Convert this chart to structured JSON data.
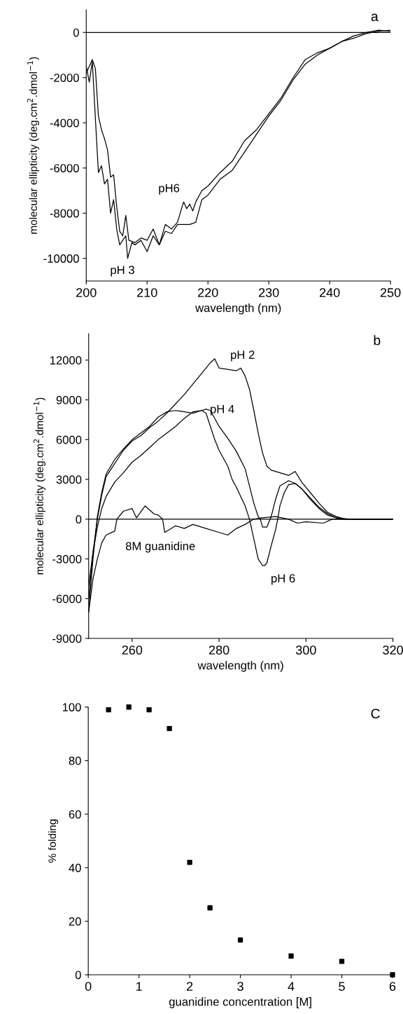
{
  "chart_data": [
    {
      "type": "line",
      "xlabel": "wavelength (nm)",
      "ylabel": "molecular ellipticity (deg.cm$^{2}$.dmol$^{−1}$)",
      "xlim": [
        200,
        250
      ],
      "ylim": [
        -11000,
        1000
      ],
      "xticks": [
        200,
        210,
        220,
        230,
        240,
        250
      ],
      "yticks": [
        -10000,
        -8000,
        -6000,
        -4000,
        -2000,
        0
      ],
      "grid": false,
      "legend": false,
      "marker": "none",
      "line_style": "solid",
      "ref_lines": [
        {
          "axis": "y",
          "value": 0,
          "color": "#000000"
        }
      ],
      "annotations": [
        "a"
      ],
      "series": [
        {
          "name": "pH 3",
          "color": "#000000",
          "x": [
            200,
            200.5,
            201,
            201.5,
            202,
            202.5,
            203,
            203.5,
            204,
            204.5,
            205,
            205.5,
            206,
            206.5,
            206.8,
            207.5,
            208,
            209,
            210,
            211,
            212,
            213,
            214,
            215,
            216,
            217,
            218,
            219,
            220,
            222,
            224,
            226,
            228,
            230,
            232,
            234,
            236,
            238,
            240,
            242,
            244,
            246,
            248,
            250
          ],
          "values": [
            -1500,
            -2200,
            -1300,
            -3800,
            -6200,
            -5900,
            -6700,
            -6500,
            -8000,
            -7400,
            -8700,
            -9400,
            -9200,
            -9000,
            -10000,
            -9300,
            -9400,
            -9200,
            -9700,
            -9000,
            -9400,
            -8800,
            -8900,
            -8500,
            -8500,
            -8500,
            -8400,
            -7400,
            -7200,
            -6500,
            -6100,
            -5300,
            -4500,
            -3700,
            -3000,
            -2100,
            -1400,
            -1000,
            -700,
            -400,
            -250,
            -50,
            50,
            100
          ]
        },
        {
          "name": "pH6",
          "color": "#000000",
          "x": [
            200,
            201,
            201.5,
            202,
            202.5,
            203,
            203.5,
            204,
            204.5,
            205,
            205.5,
            206,
            206.5,
            207,
            208,
            209,
            210,
            211,
            212,
            213,
            214,
            215,
            216,
            216.5,
            217,
            217.5,
            218,
            219,
            220,
            222,
            224,
            226,
            228,
            230,
            232,
            234,
            236,
            238,
            240,
            242,
            244,
            246,
            248,
            250
          ],
          "values": [
            -1800,
            -1200,
            -1600,
            -3700,
            -4300,
            -4700,
            -5200,
            -6400,
            -6300,
            -7700,
            -8800,
            -9000,
            -8100,
            -9200,
            -9300,
            -9100,
            -9200,
            -8700,
            -9400,
            -8500,
            -8700,
            -8400,
            -7500,
            -7800,
            -7600,
            -7900,
            -7500,
            -7000,
            -6800,
            -6200,
            -5700,
            -4800,
            -4300,
            -3600,
            -2900,
            -2000,
            -1200,
            -900,
            -700,
            -400,
            -150,
            0,
            100,
            50
          ]
        }
      ]
    },
    {
      "type": "line",
      "xlabel": "wavelength (nm)",
      "ylabel": "molecular ellipticity (deg.cm$^{2}$.dmol$^{−1}$)",
      "xlim": [
        250,
        320
      ],
      "ylim": [
        -9000,
        14000
      ],
      "xticks": [
        260,
        280,
        300,
        320
      ],
      "yticks": [
        -9000,
        -6000,
        -3000,
        0,
        3000,
        6000,
        9000,
        12000
      ],
      "grid": false,
      "legend": false,
      "marker": "none",
      "line_style": "solid",
      "ref_lines": [
        {
          "axis": "y",
          "value": 0,
          "color": "#000000"
        }
      ],
      "annotations": [
        "b"
      ],
      "series": [
        {
          "name": "pH 2",
          "color": "#000000",
          "x": [
            250,
            251,
            252,
            253,
            254,
            256,
            258,
            260,
            262,
            264,
            266,
            268,
            270,
            272,
            274,
            276,
            278,
            279,
            280,
            282,
            284,
            285,
            286,
            287,
            288,
            289,
            290,
            291,
            292,
            294,
            296,
            297.5,
            299,
            301,
            303,
            305,
            307,
            309,
            312,
            316,
            320
          ],
          "values": [
            -6000,
            -2500,
            0,
            1800,
            3200,
            4200,
            5200,
            5900,
            6300,
            6900,
            7400,
            8000,
            8700,
            9400,
            10200,
            11000,
            11800,
            12100,
            11400,
            11300,
            11200,
            11400,
            10800,
            9800,
            8200,
            6500,
            5000,
            4000,
            3700,
            3500,
            3300,
            3600,
            2800,
            2000,
            1200,
            500,
            200,
            0,
            0,
            0,
            0
          ]
        },
        {
          "name": "pH 4",
          "color": "#000000",
          "x": [
            250,
            251,
            252,
            253,
            254,
            256,
            258,
            260,
            262,
            264,
            266,
            268,
            270,
            272,
            274,
            276,
            277,
            278,
            280,
            282,
            284,
            286,
            287,
            288,
            289,
            289.5,
            290,
            291,
            292,
            293,
            294,
            296,
            297.5,
            299,
            301,
            303,
            305,
            307,
            310,
            315,
            320
          ],
          "values": [
            -5000,
            -2500,
            -600,
            800,
            1700,
            2800,
            3500,
            4300,
            4800,
            5400,
            6000,
            6500,
            7000,
            7600,
            8100,
            8200,
            8300,
            8200,
            7000,
            6100,
            5100,
            3800,
            2500,
            1200,
            200,
            0,
            -600,
            -600,
            200,
            1500,
            2500,
            2900,
            2700,
            2300,
            1600,
            900,
            400,
            100,
            0,
            0,
            0
          ]
        },
        {
          "name": "pH 6",
          "color": "#000000",
          "x": [
            250,
            251,
            252,
            253,
            254,
            256,
            258,
            260,
            262,
            264,
            266,
            268,
            270,
            272,
            274,
            276,
            277,
            278,
            279,
            280,
            282,
            283,
            284,
            286,
            287,
            288,
            289,
            290,
            290.5,
            291,
            292,
            293,
            293.5,
            294,
            295,
            296,
            297.5,
            299,
            301,
            303,
            305,
            308,
            312,
            320
          ],
          "values": [
            -7000,
            -3000,
            200,
            2000,
            3400,
            4500,
            5300,
            6000,
            6500,
            7000,
            7700,
            8100,
            8200,
            8100,
            8000,
            8200,
            8000,
            7000,
            6000,
            5200,
            4000,
            3000,
            2400,
            1000,
            0,
            -1500,
            -3000,
            -3500,
            -3500,
            -3300,
            -2000,
            -800,
            0,
            1000,
            2000,
            2600,
            2700,
            2300,
            1500,
            800,
            300,
            0,
            0,
            0
          ]
        },
        {
          "name": "8M guanidine",
          "color": "#000000",
          "x": [
            250,
            251,
            252,
            253,
            254,
            256,
            256.5,
            258,
            260,
            261,
            263,
            265,
            266,
            267,
            267.5,
            270,
            272,
            274,
            277,
            280,
            282,
            284,
            286,
            288,
            290,
            293,
            296,
            298,
            300,
            304,
            306,
            320
          ],
          "values": [
            -7000,
            -4500,
            -3000,
            -1800,
            -1200,
            -900,
            0,
            600,
            800,
            100,
            1000,
            400,
            300,
            0,
            -1000,
            -500,
            -700,
            -400,
            -700,
            -1000,
            -1200,
            -700,
            -400,
            0,
            100,
            200,
            0,
            -300,
            -200,
            -300,
            0,
            0
          ]
        }
      ]
    },
    {
      "type": "scatter",
      "xlabel": "guanidine concentration [M]",
      "ylabel": "% folding",
      "xlim": [
        0,
        6
      ],
      "ylim": [
        0,
        100
      ],
      "xticks": [
        0,
        1,
        2,
        3,
        4,
        5,
        6
      ],
      "yticks": [
        0,
        20,
        40,
        60,
        80,
        100
      ],
      "grid": false,
      "legend": false,
      "marker": "square",
      "annotations": [
        "C"
      ],
      "series": [
        {
          "color": "#000000",
          "x": [
            0.4,
            0.8,
            1.2,
            1.6,
            2,
            2.4,
            3,
            4,
            5,
            6
          ],
          "values": [
            99,
            100,
            99,
            92,
            42,
            25,
            13,
            7,
            5,
            0
          ]
        }
      ]
    }
  ]
}
